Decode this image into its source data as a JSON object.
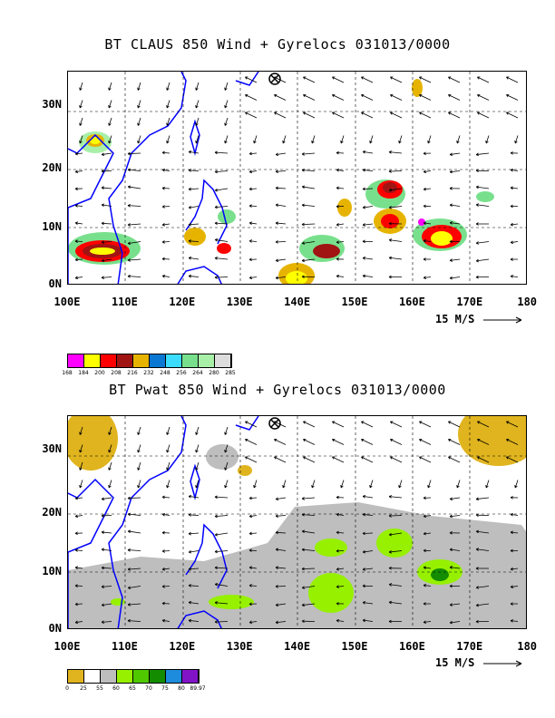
{
  "panels": [
    {
      "title": "BT CLAUS 850 Wind + Gyrelocs 031013/0000",
      "legend": {
        "colors": [
          "#ff00ff",
          "#ffff00",
          "#ff0000",
          "#a01414",
          "#e6b400",
          "#0a78d2",
          "#3cdcff",
          "#78e08c",
          "#a8f0a8",
          "#dcdcdc"
        ],
        "labels": [
          "168",
          "184",
          "200",
          "208",
          "216",
          "232",
          "248",
          "256",
          "264",
          "280",
          "285"
        ]
      }
    },
    {
      "title": "BT Pwat 850 Wind + Gyrelocs 031013/0000",
      "legend": {
        "colors": [
          "#e0b41e",
          "#ffffff",
          "#bebebe",
          "#96f000",
          "#50c800",
          "#148c00",
          "#1e8cdc",
          "#8214c8"
        ],
        "labels": [
          "0",
          "25",
          "55",
          "60",
          "65",
          "70",
          "75",
          "80",
          "89.97"
        ]
      }
    }
  ],
  "axes": {
    "x_ticks": [
      "100E",
      "110E",
      "120E",
      "130E",
      "140E",
      "150E",
      "160E",
      "170E",
      "180"
    ],
    "y_ticks": [
      "0N",
      "10N",
      "20N",
      "30N"
    ],
    "lon_range": [
      100,
      180
    ],
    "lat_range": [
      0,
      37
    ]
  },
  "wind_scale": {
    "label": "15 M/S"
  },
  "gyre_marker": {
    "lon": 136,
    "lat": 36
  },
  "colors": {
    "coast": "#0000ff",
    "arrow": "#000000"
  }
}
